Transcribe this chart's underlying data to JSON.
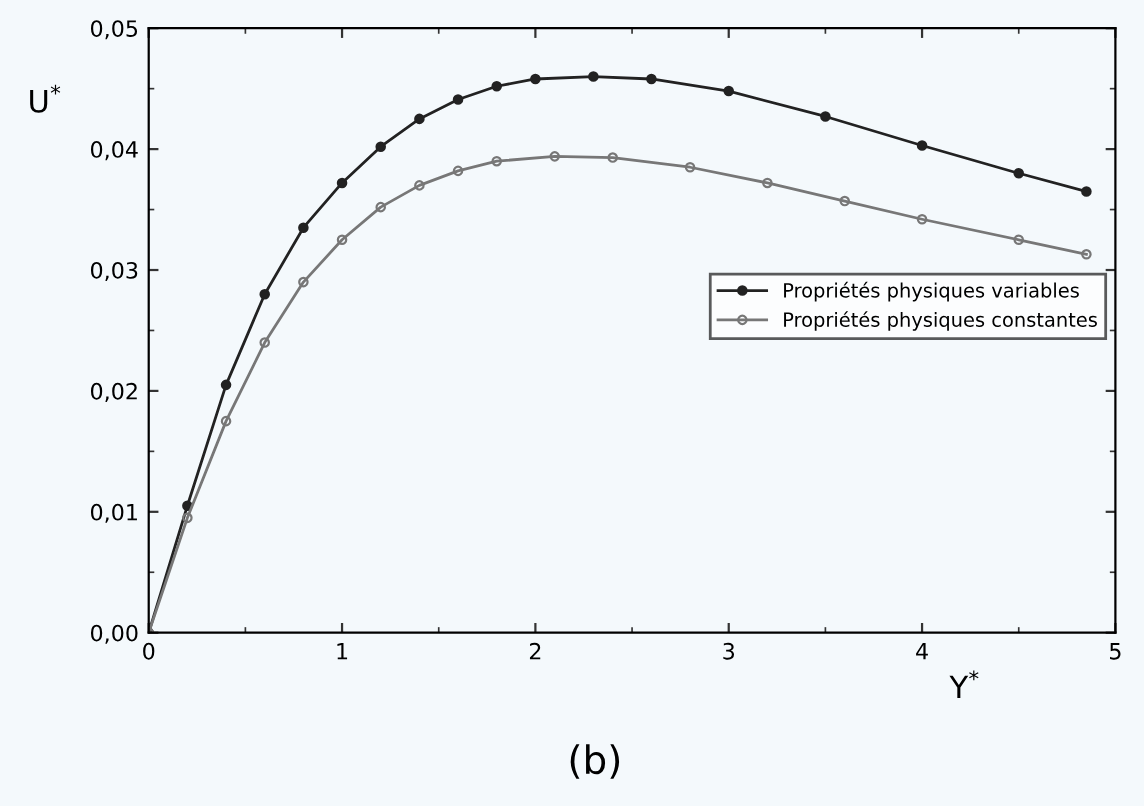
{
  "chart_data": {
    "type": "line",
    "xlabel": "Y$^{*}$",
    "ylabel": "U$^{*}$",
    "annotations": [
      "(b)"
    ],
    "xlim": [
      0,
      5
    ],
    "ylim": [
      0,
      0.05
    ],
    "xticks": [
      0,
      1,
      2,
      3,
      4,
      5
    ],
    "yticks": [
      {
        "value": 0,
        "label": "0,00"
      },
      {
        "value": 0.01,
        "label": "0,01"
      },
      {
        "value": 0.02,
        "label": "0,02"
      },
      {
        "value": 0.03,
        "label": "0,03"
      },
      {
        "value": 0.04,
        "label": "0,04"
      },
      {
        "value": 0.05,
        "label": "0,05"
      }
    ],
    "grid": false,
    "legend": "right",
    "marker": "circle",
    "line_style": "solid",
    "series": [
      {
        "name": "Propriétés physiques variables",
        "color": "#222222",
        "x": [
          0,
          0.2,
          0.4,
          0.6,
          0.8,
          1.0,
          1.2,
          1.4,
          1.6,
          1.8,
          2.0,
          2.3,
          2.6,
          3.0,
          3.5,
          4.0,
          4.5,
          4.85
        ],
        "values": [
          0,
          0.0105,
          0.0205,
          0.028,
          0.0335,
          0.0372,
          0.0402,
          0.0425,
          0.0441,
          0.0452,
          0.0458,
          0.046,
          0.0458,
          0.0448,
          0.0427,
          0.0403,
          0.038,
          0.0365
        ]
      },
      {
        "name": "Propriétés physiques constantes",
        "color": "#777777",
        "x": [
          0,
          0.2,
          0.4,
          0.6,
          0.8,
          1.0,
          1.2,
          1.4,
          1.6,
          1.8,
          2.1,
          2.4,
          2.8,
          3.2,
          3.6,
          4.0,
          4.5,
          4.85
        ],
        "values": [
          0,
          0.0095,
          0.0175,
          0.024,
          0.029,
          0.0325,
          0.0352,
          0.037,
          0.0382,
          0.039,
          0.0394,
          0.0393,
          0.0385,
          0.0372,
          0.0357,
          0.0342,
          0.0325,
          0.0313
        ]
      }
    ]
  }
}
